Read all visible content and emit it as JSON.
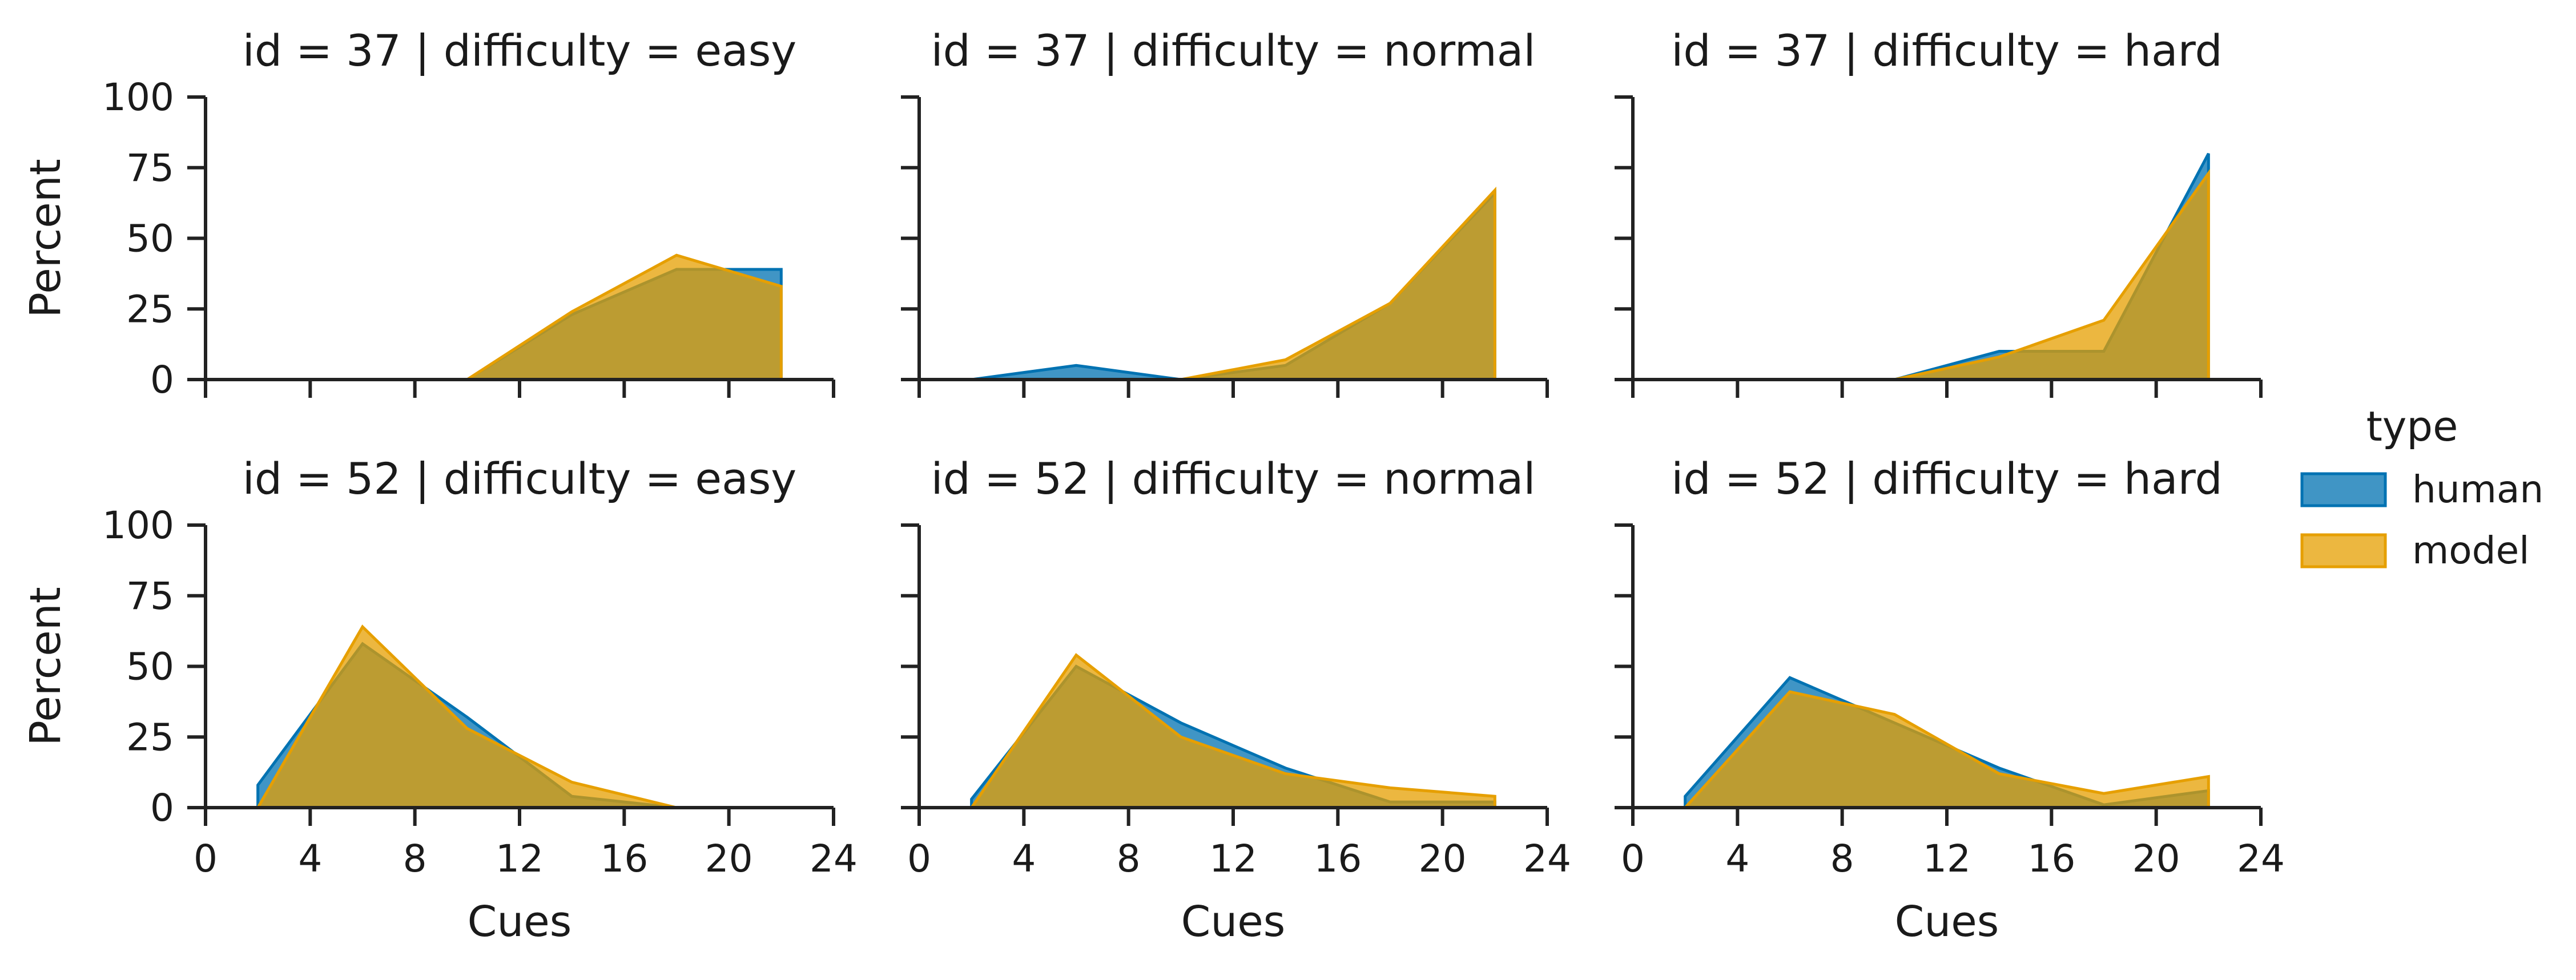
{
  "legend": {
    "title": "type",
    "entries": [
      {
        "label": "human",
        "color": "#0072B2"
      },
      {
        "label": "model",
        "color": "#E69F00"
      }
    ]
  },
  "chart_data": {
    "type": "area",
    "layout": "facet-grid 2x3",
    "xlabel": "Cues",
    "ylabel": "Percent",
    "xlim": [
      0,
      24
    ],
    "ylim": [
      0,
      100
    ],
    "xticks": [
      0,
      4,
      8,
      12,
      16,
      20,
      24
    ],
    "yticks": [
      0,
      25,
      50,
      75,
      100
    ],
    "grid": false,
    "legend_position": "right",
    "colors": {
      "human": "#0072B2",
      "model": "#E69F00"
    },
    "panels": [
      {
        "title": "id = 37 | difficulty = easy",
        "row": 0,
        "col": 0,
        "series": [
          {
            "name": "human",
            "x": [
              10,
              14,
              18,
              22
            ],
            "y": [
              0,
              23,
              39,
              39
            ]
          },
          {
            "name": "model",
            "x": [
              10,
              14,
              18,
              22
            ],
            "y": [
              0,
              24,
              44,
              33
            ]
          }
        ]
      },
      {
        "title": "id = 37 | difficulty = normal",
        "row": 0,
        "col": 1,
        "series": [
          {
            "name": "human",
            "x": [
              2,
              6,
              10,
              14,
              18,
              22
            ],
            "y": [
              0,
              5,
              0,
              5,
              27,
              66
            ]
          },
          {
            "name": "model",
            "x": [
              10,
              14,
              18,
              22
            ],
            "y": [
              0,
              7,
              27,
              67
            ]
          }
        ]
      },
      {
        "title": "id = 37 | difficulty = hard",
        "row": 0,
        "col": 2,
        "series": [
          {
            "name": "human",
            "x": [
              10,
              14,
              18,
              22
            ],
            "y": [
              0,
              10,
              10,
              80
            ]
          },
          {
            "name": "model",
            "x": [
              10,
              14,
              18,
              22
            ],
            "y": [
              0,
              8,
              21,
              73
            ]
          }
        ]
      },
      {
        "title": "id = 52 | difficulty = easy",
        "row": 1,
        "col": 0,
        "series": [
          {
            "name": "human",
            "x": [
              2,
              6,
              10,
              14,
              18
            ],
            "y": [
              8,
              58,
              32,
              4,
              0
            ]
          },
          {
            "name": "model",
            "x": [
              2,
              6,
              10,
              14,
              18
            ],
            "y": [
              0,
              64,
              28,
              9,
              0
            ]
          }
        ]
      },
      {
        "title": "id = 52 | difficulty = normal",
        "row": 1,
        "col": 1,
        "series": [
          {
            "name": "human",
            "x": [
              2,
              6,
              10,
              14,
              18,
              22
            ],
            "y": [
              3,
              50,
              30,
              14,
              2,
              2
            ]
          },
          {
            "name": "model",
            "x": [
              2,
              6,
              10,
              14,
              18,
              22
            ],
            "y": [
              0,
              54,
              25,
              12,
              7,
              4
            ]
          }
        ]
      },
      {
        "title": "id = 52 | difficulty = hard",
        "row": 1,
        "col": 2,
        "series": [
          {
            "name": "human",
            "x": [
              2,
              6,
              10,
              14,
              18,
              22
            ],
            "y": [
              4,
              46,
              30,
              14,
              1,
              6
            ]
          },
          {
            "name": "model",
            "x": [
              2,
              6,
              10,
              14,
              18,
              22
            ],
            "y": [
              0,
              41,
              33,
              12,
              5,
              11
            ]
          }
        ]
      }
    ]
  }
}
